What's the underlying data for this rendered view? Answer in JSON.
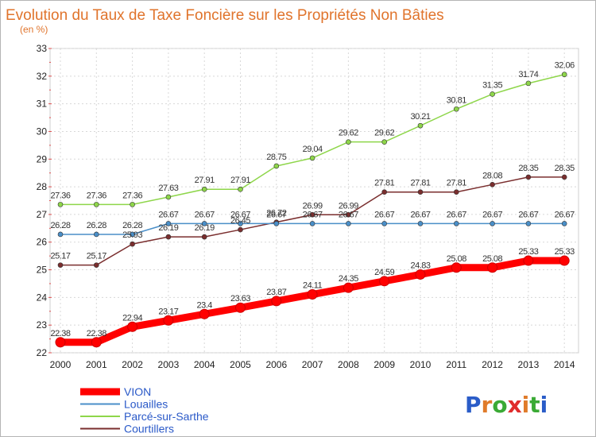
{
  "header": {
    "title": "Evolution du Taux de Taxe Foncière sur les Propriétés Non Bâties",
    "subtitle": "(en %)"
  },
  "logo": {
    "letters": [
      "P",
      "r",
      "o",
      "x",
      "i",
      "t",
      "i"
    ],
    "colors": [
      "#2a5cc8",
      "#e07b2a",
      "#3aaa35",
      "#e02c2c",
      "#e07b2a",
      "#3aaa35",
      "#2a5cc8"
    ]
  },
  "chart_data": {
    "type": "line",
    "x": [
      "2000",
      "2001",
      "2002",
      "2003",
      "2004",
      "2005",
      "2006",
      "2007",
      "2008",
      "2009",
      "2010",
      "2011",
      "2012",
      "2013",
      "2014"
    ],
    "yticks": [
      "22",
      "23",
      "24",
      "25",
      "26",
      "27",
      "28",
      "29",
      "30",
      "31",
      "32",
      "33"
    ],
    "ylim": [
      22,
      33
    ],
    "grid": true,
    "legend_position": "bottom-left",
    "series": [
      {
        "name": "Courtillers",
        "color": "#7a2e2e",
        "values": [
          25.17,
          25.17,
          25.93,
          26.19,
          26.19,
          26.45,
          26.72,
          26.99,
          26.99,
          27.81,
          27.81,
          27.81,
          28.08,
          28.35,
          28.35
        ],
        "labels": [
          "25.17",
          "25.17",
          "25.93",
          "26.19",
          "26.19",
          "26.45",
          "26.72",
          "26.99",
          "26.99",
          "27.81",
          "27.81",
          "27.81",
          "28.08",
          "28.35",
          "28.35"
        ]
      },
      {
        "name": "Louailles",
        "color": "#4a8fc8",
        "values": [
          26.28,
          26.28,
          26.28,
          26.67,
          26.67,
          26.67,
          26.67,
          26.67,
          26.67,
          26.67,
          26.67,
          26.67,
          26.67,
          26.67,
          26.67
        ],
        "labels": [
          "26.28",
          "26.28",
          "26.28",
          "26.67",
          "26.67",
          "26.67",
          "26.67",
          "26.67",
          "26.67",
          "26.67",
          "26.67",
          "26.67",
          "26.67",
          "26.67",
          "26.67"
        ]
      },
      {
        "name": "Parcé-sur-Sarthe",
        "color": "#8ed64a",
        "values": [
          27.36,
          27.36,
          27.36,
          27.63,
          27.91,
          27.91,
          28.75,
          29.04,
          29.62,
          29.62,
          30.21,
          30.81,
          31.35,
          31.74,
          32.06
        ],
        "labels": [
          "27.36",
          "27.36",
          "27.36",
          "27.63",
          "27.91",
          "27.91",
          "28.75",
          "29.04",
          "29.62",
          "29.62",
          "30.21",
          "30.81",
          "31.35",
          "31.74",
          "32.06"
        ]
      },
      {
        "name": "VION",
        "color": "#ff0000",
        "values": [
          22.38,
          22.38,
          22.94,
          23.17,
          23.4,
          23.63,
          23.87,
          24.11,
          24.35,
          24.59,
          24.83,
          25.08,
          25.08,
          25.33,
          25.33
        ],
        "labels": [
          "22.38",
          "22.38",
          "22.94",
          "23.17",
          "23.4",
          "23.63",
          "23.87",
          "24.11",
          "24.35",
          "24.59",
          "24.83",
          "25.08",
          "25.08",
          "25.33",
          "25.33"
        ]
      }
    ],
    "legend": [
      "VION",
      "Louailles",
      "Parcé-sur-Sarthe",
      "Courtillers"
    ]
  }
}
